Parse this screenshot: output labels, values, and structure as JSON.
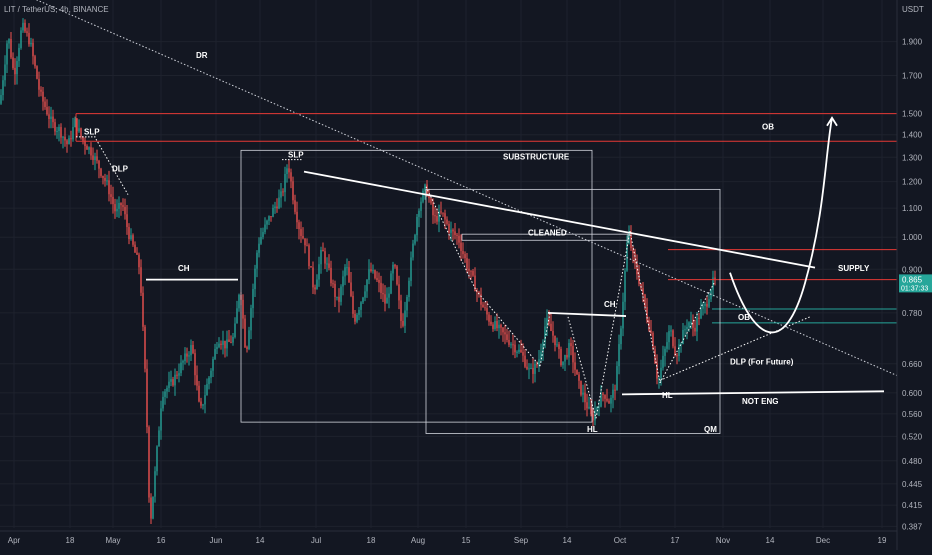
{
  "chart_data": {
    "type": "candlestick",
    "symbol_header": "LIT / TetherUS, 4h, BINANCE",
    "quote_currency": "USDT",
    "price_axis": {
      "scale": "log",
      "range": [
        0.38,
        2.15
      ],
      "ticks": [
        "1.900",
        "1.700",
        "1.500",
        "1.400",
        "1.300",
        "1.200",
        "1.100",
        "1.000",
        "0.900",
        "0.780",
        "0.660",
        "0.600",
        "0.560",
        "0.520",
        "0.480",
        "0.445",
        "0.415",
        "0.387"
      ]
    },
    "time_axis": {
      "ticks": [
        "Apr",
        "18",
        "May",
        "16",
        "Jun",
        "14",
        "Jul",
        "18",
        "Aug",
        "15",
        "Sep",
        "14",
        "Oct",
        "17",
        "Nov",
        "14",
        "Dec",
        "19"
      ]
    },
    "last_price": "0.865",
    "countdown": "01:37:33",
    "colors": {
      "background": "#131722",
      "up": "#26a69a",
      "down": "#ef5350",
      "resistance": "#e53935",
      "support": "#26a69a",
      "annotation": "#ffffff",
      "grid": "#1e222d"
    },
    "price_path": [
      [
        0,
        1.55
      ],
      [
        8,
        1.95
      ],
      [
        14,
        1.7
      ],
      [
        22,
        2.0
      ],
      [
        30,
        1.9
      ],
      [
        40,
        1.6
      ],
      [
        52,
        1.45
      ],
      [
        60,
        1.42
      ],
      [
        68,
        1.35
      ],
      [
        75,
        1.46
      ],
      [
        82,
        1.38
      ],
      [
        92,
        1.32
      ],
      [
        100,
        1.25
      ],
      [
        108,
        1.18
      ],
      [
        116,
        1.08
      ],
      [
        122,
        1.12
      ],
      [
        128,
        1.02
      ],
      [
        134,
        0.96
      ],
      [
        140,
        0.9
      ],
      [
        146,
        0.6
      ],
      [
        150,
        0.387
      ],
      [
        155,
        0.46
      ],
      [
        162,
        0.6
      ],
      [
        172,
        0.62
      ],
      [
        182,
        0.66
      ],
      [
        192,
        0.7
      ],
      [
        200,
        0.56
      ],
      [
        210,
        0.64
      ],
      [
        218,
        0.72
      ],
      [
        226,
        0.7
      ],
      [
        234,
        0.72
      ],
      [
        240,
        0.86
      ],
      [
        246,
        0.68
      ],
      [
        252,
        0.82
      ],
      [
        258,
        0.98
      ],
      [
        266,
        1.04
      ],
      [
        274,
        1.1
      ],
      [
        282,
        1.15
      ],
      [
        288,
        1.28
      ],
      [
        294,
        1.12
      ],
      [
        300,
        1.02
      ],
      [
        306,
        0.98
      ],
      [
        314,
        0.84
      ],
      [
        322,
        0.96
      ],
      [
        330,
        0.88
      ],
      [
        338,
        0.8
      ],
      [
        346,
        0.92
      ],
      [
        354,
        0.76
      ],
      [
        362,
        0.82
      ],
      [
        370,
        0.9
      ],
      [
        378,
        0.86
      ],
      [
        386,
        0.8
      ],
      [
        394,
        0.92
      ],
      [
        402,
        0.74
      ],
      [
        410,
        0.9
      ],
      [
        418,
        1.1
      ],
      [
        426,
        1.18
      ],
      [
        434,
        1.06
      ],
      [
        442,
        1.08
      ],
      [
        450,
        1.02
      ],
      [
        458,
        1.0
      ],
      [
        466,
        0.92
      ],
      [
        474,
        0.86
      ],
      [
        482,
        0.8
      ],
      [
        490,
        0.76
      ],
      [
        498,
        0.74
      ],
      [
        506,
        0.72
      ],
      [
        514,
        0.7
      ],
      [
        522,
        0.68
      ],
      [
        530,
        0.64
      ],
      [
        538,
        0.66
      ],
      [
        546,
        0.76
      ],
      [
        554,
        0.72
      ],
      [
        562,
        0.66
      ],
      [
        570,
        0.7
      ],
      [
        578,
        0.62
      ],
      [
        586,
        0.58
      ],
      [
        592,
        0.55
      ],
      [
        598,
        0.58
      ],
      [
        604,
        0.6
      ],
      [
        610,
        0.58
      ],
      [
        616,
        0.62
      ],
      [
        622,
        0.78
      ],
      [
        628,
        1.02
      ],
      [
        634,
        0.92
      ],
      [
        640,
        0.86
      ],
      [
        646,
        0.78
      ],
      [
        652,
        0.72
      ],
      [
        658,
        0.62
      ],
      [
        664,
        0.68
      ],
      [
        670,
        0.74
      ],
      [
        676,
        0.68
      ],
      [
        682,
        0.72
      ],
      [
        688,
        0.76
      ],
      [
        694,
        0.74
      ],
      [
        700,
        0.78
      ],
      [
        706,
        0.8
      ],
      [
        712,
        0.86
      ],
      [
        716,
        0.865
      ]
    ],
    "annotations": {
      "labels": [
        "SLP",
        "DLP",
        "SLP",
        "CH",
        "SUBSTRUCTURE",
        "CLEANED",
        "CH",
        "DR",
        "OB",
        "OB",
        "SUPPLY",
        "DLP (For Future)",
        "HL",
        "HL",
        "NOT ENG",
        "QM"
      ]
    },
    "levels": {
      "ob_top": [
        1.5,
        1.37
      ],
      "supply": [
        0.96,
        0.87
      ],
      "ob_low": [
        0.79,
        0.755
      ],
      "ch_left": 0.87,
      "ch_mid": 0.775,
      "not_eng": 0.595,
      "cleaned": 1.0
    }
  }
}
